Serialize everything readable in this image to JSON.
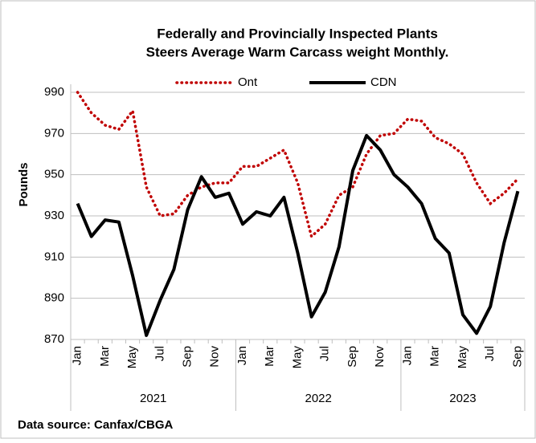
{
  "chart_data": {
    "type": "line",
    "title": [
      "Federally and Provincially Inspected Plants",
      "Steers Average Warm Carcass weight Monthly."
    ],
    "y_label": "Pounds",
    "source": "Data source: Canfax/CBGA",
    "categories": [
      "Jan",
      null,
      "Mar",
      null,
      "May",
      null,
      "Jul",
      null,
      "Sep",
      null,
      "Nov",
      null,
      "Jan",
      null,
      "Mar",
      null,
      "May",
      null,
      "Jul",
      null,
      "Sep",
      null,
      "Nov",
      null,
      "Jan",
      null,
      "Mar",
      null,
      "May",
      null,
      "Jul",
      null,
      "Sep"
    ],
    "years": [
      "2021",
      "2022",
      "2023"
    ],
    "series": [
      {
        "name": "Ont",
        "color": "#c00000",
        "style": "dotted",
        "values": [
          990,
          980,
          974,
          972,
          981,
          944,
          930,
          931,
          940,
          944,
          946,
          946,
          954,
          954,
          958,
          962,
          946,
          920,
          926,
          940,
          944,
          960,
          969,
          970,
          977,
          976,
          968,
          965,
          960,
          946,
          936,
          941,
          948
        ]
      },
      {
        "name": "CDN",
        "color": "#000000",
        "style": "solid",
        "values": [
          936,
          920,
          928,
          927,
          901,
          872,
          889,
          904,
          933,
          949,
          939,
          941,
          926,
          932,
          930,
          939,
          912,
          881,
          893,
          915,
          952,
          969,
          962,
          950,
          944,
          936,
          919,
          912,
          882,
          873,
          886,
          917,
          942
        ]
      }
    ],
    "ylim": [
      870,
      990
    ],
    "yticks": [
      870,
      890,
      910,
      930,
      950,
      970,
      990
    ],
    "grid": true,
    "legend": "top"
  }
}
